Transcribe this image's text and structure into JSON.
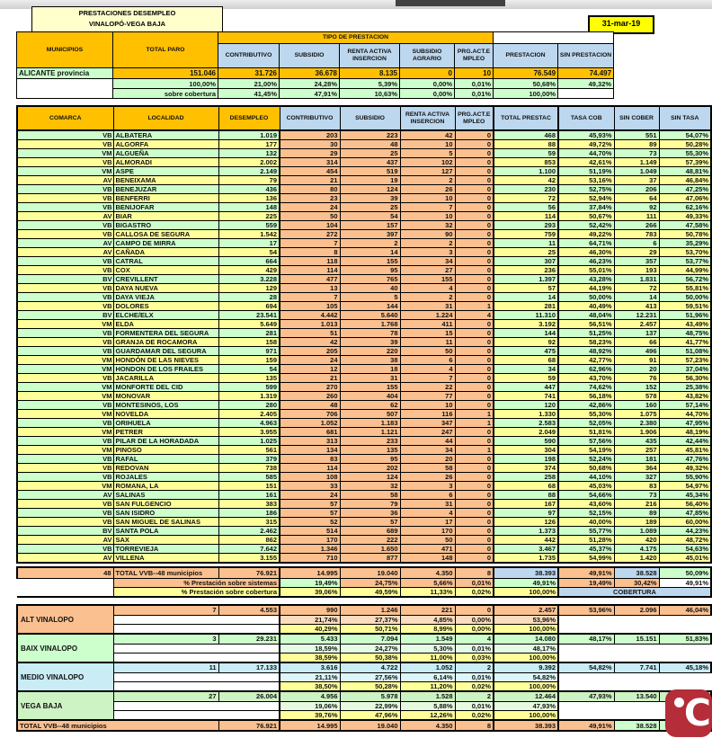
{
  "header": {
    "title_line1": "PRESTACIONES DESEMPLEO",
    "title_line2": "VINALOPÓ-VEGA BAJA",
    "date": "31-mar-19"
  },
  "colors": {
    "header_gold": "#ffc000",
    "header_blue": "#bdd7ee",
    "row_green": "#ccffcc",
    "row_yellow": "#ffff99",
    "cell_peach": "#fbc08f",
    "date_yellow": "#ffff00",
    "title_cream": "#ffffcc",
    "medio_cyan": "#c9ecf5",
    "logo_red": "#b52d38"
  },
  "summary_table": {
    "headers": {
      "municipios": "MUNICIPIOS",
      "total_paro": "TOTAL PARO",
      "tipo": "TIPO DE PRESTACION",
      "contributivo": "CONTRIBUTIVO",
      "subsidio": "SUBSIDIO",
      "renta": "RENTA ACTIVA INSERCION",
      "agrario": "SUBSIDIO AGRARIO",
      "prg": "PRG.ACT.EMPLEO",
      "prestacion": "PRESTACION",
      "sin_prestacion": "SIN PRESTACION"
    },
    "rows": [
      {
        "label": "ALICANTE provincia",
        "values": [
          "151.046",
          "31.726",
          "36.678",
          "8.135",
          "0",
          "10",
          "76.549",
          "74.497"
        ]
      },
      {
        "label": "",
        "values": [
          "100,00%",
          "21,00%",
          "24,28%",
          "5,39%",
          "0,00%",
          "0,01%",
          "50,68%",
          "49,32%"
        ]
      },
      {
        "label": "",
        "values": [
          "sobre cobertura",
          "41,45%",
          "47,91%",
          "10,63%",
          "0,00%",
          "0,01%",
          "100,00%",
          ""
        ]
      }
    ]
  },
  "main_table": {
    "headers": [
      "COMARCA",
      "LOCALIDAD",
      "DESEMPLEO",
      "CONTRIBUTIVO",
      "SUBSIDIO",
      "RENTA ACTIVA INSERCION",
      "PRG.ACT.EMPLEO",
      "TOTAL PRESTAC",
      "TASA COB",
      "SIN COBER",
      "SIN TASA"
    ],
    "rows": [
      [
        "VB",
        "ALBATERA",
        "1.019",
        "203",
        "223",
        "42",
        "0",
        "468",
        "45,93%",
        "551",
        "54,07%"
      ],
      [
        "VB",
        "ALGORFA",
        "177",
        "30",
        "48",
        "10",
        "0",
        "88",
        "49,72%",
        "89",
        "50,28%"
      ],
      [
        "VM",
        "ALGUEÑA",
        "132",
        "29",
        "25",
        "5",
        "0",
        "59",
        "44,70%",
        "73",
        "55,30%"
      ],
      [
        "VB",
        "ALMORADI",
        "2.002",
        "314",
        "437",
        "102",
        "0",
        "853",
        "42,61%",
        "1.149",
        "57,39%"
      ],
      [
        "VM",
        "ASPE",
        "2.149",
        "454",
        "519",
        "127",
        "0",
        "1.100",
        "51,19%",
        "1.049",
        "48,81%"
      ],
      [
        "AV",
        "BENEIXAMA",
        "79",
        "21",
        "19",
        "2",
        "0",
        "42",
        "53,16%",
        "37",
        "46,84%"
      ],
      [
        "VB",
        "BENEJUZAR",
        "436",
        "80",
        "124",
        "26",
        "0",
        "230",
        "52,75%",
        "206",
        "47,25%"
      ],
      [
        "VB",
        "BENFERRI",
        "136",
        "23",
        "39",
        "10",
        "0",
        "72",
        "52,94%",
        "64",
        "47,06%"
      ],
      [
        "VB",
        "BENIJOFAR",
        "148",
        "24",
        "25",
        "7",
        "0",
        "56",
        "37,84%",
        "92",
        "62,16%"
      ],
      [
        "AV",
        "BIAR",
        "225",
        "50",
        "54",
        "10",
        "0",
        "114",
        "50,67%",
        "111",
        "49,33%"
      ],
      [
        "VB",
        "BIGASTRO",
        "559",
        "104",
        "157",
        "32",
        "0",
        "293",
        "52,42%",
        "266",
        "47,58%"
      ],
      [
        "VB",
        "CALLOSA DE SEGURA",
        "1.542",
        "272",
        "397",
        "90",
        "0",
        "759",
        "49,22%",
        "783",
        "50,78%"
      ],
      [
        "AV",
        "CAMPO DE MIRRA",
        "17",
        "7",
        "2",
        "2",
        "0",
        "11",
        "64,71%",
        "6",
        "35,29%"
      ],
      [
        "AV",
        "CAÑADA",
        "54",
        "8",
        "14",
        "3",
        "0",
        "25",
        "46,30%",
        "29",
        "53,70%"
      ],
      [
        "VB",
        "CATRAL",
        "664",
        "118",
        "155",
        "34",
        "0",
        "307",
        "46,23%",
        "357",
        "53,77%"
      ],
      [
        "VB",
        "COX",
        "429",
        "114",
        "95",
        "27",
        "0",
        "236",
        "55,01%",
        "193",
        "44,99%"
      ],
      [
        "BV",
        "CREVILLENT",
        "3.228",
        "477",
        "765",
        "155",
        "0",
        "1.397",
        "43,28%",
        "1.831",
        "56,72%"
      ],
      [
        "VB",
        "DAYA NUEVA",
        "129",
        "13",
        "40",
        "4",
        "0",
        "57",
        "44,19%",
        "72",
        "55,81%"
      ],
      [
        "VB",
        "DAYA VIEJA",
        "28",
        "7",
        "5",
        "2",
        "0",
        "14",
        "50,00%",
        "14",
        "50,00%"
      ],
      [
        "VB",
        "DOLORES",
        "694",
        "105",
        "144",
        "31",
        "1",
        "281",
        "40,49%",
        "413",
        "59,51%"
      ],
      [
        "BV",
        "ELCHE/ELX",
        "23.541",
        "4.442",
        "5.640",
        "1.224",
        "4",
        "11.310",
        "48,04%",
        "12.231",
        "51,96%"
      ],
      [
        "VM",
        "ELDA",
        "5.649",
        "1.013",
        "1.768",
        "411",
        "0",
        "3.192",
        "56,51%",
        "2.457",
        "43,49%"
      ],
      [
        "VB",
        "FORMENTERA DEL SEGURA",
        "281",
        "51",
        "78",
        "15",
        "0",
        "144",
        "51,25%",
        "137",
        "48,75%"
      ],
      [
        "VB",
        "GRANJA DE ROCAMORA",
        "158",
        "42",
        "39",
        "11",
        "0",
        "92",
        "58,23%",
        "66",
        "41,77%"
      ],
      [
        "VB",
        "GUARDAMAR DEL SEGURA",
        "971",
        "205",
        "220",
        "50",
        "0",
        "475",
        "48,92%",
        "496",
        "51,08%"
      ],
      [
        "VM",
        "HONDÓN DE LAS NIEVES",
        "159",
        "24",
        "38",
        "6",
        "0",
        "68",
        "42,77%",
        "91",
        "57,23%"
      ],
      [
        "VM",
        "HONDON DE LOS FRAILES",
        "54",
        "12",
        "18",
        "4",
        "0",
        "34",
        "62,96%",
        "20",
        "37,04%"
      ],
      [
        "VB",
        "JACARILLA",
        "135",
        "21",
        "31",
        "7",
        "0",
        "59",
        "43,70%",
        "76",
        "56,30%"
      ],
      [
        "VM",
        "MONFORTE DEL CID",
        "599",
        "270",
        "155",
        "22",
        "0",
        "447",
        "74,62%",
        "152",
        "25,38%"
      ],
      [
        "VM",
        "MONOVAR",
        "1.319",
        "260",
        "404",
        "77",
        "0",
        "741",
        "56,18%",
        "578",
        "43,82%"
      ],
      [
        "VB",
        "MONTESINOS, LOS",
        "280",
        "48",
        "62",
        "10",
        "0",
        "120",
        "42,86%",
        "160",
        "57,14%"
      ],
      [
        "VM",
        "NOVELDA",
        "2.405",
        "706",
        "507",
        "116",
        "1",
        "1.330",
        "55,30%",
        "1.075",
        "44,70%"
      ],
      [
        "VB",
        "ORIHUELA",
        "4.963",
        "1.052",
        "1.183",
        "347",
        "1",
        "2.583",
        "52,05%",
        "2.380",
        "47,95%"
      ],
      [
        "VM",
        "PETRER",
        "3.955",
        "681",
        "1.121",
        "247",
        "0",
        "2.049",
        "51,81%",
        "1.906",
        "48,19%"
      ],
      [
        "VB",
        "PILAR DE LA HORADADA",
        "1.025",
        "313",
        "233",
        "44",
        "0",
        "590",
        "57,56%",
        "435",
        "42,44%"
      ],
      [
        "VM",
        "PINOSO",
        "561",
        "134",
        "135",
        "34",
        "1",
        "304",
        "54,19%",
        "257",
        "45,81%"
      ],
      [
        "VB",
        "RAFAL",
        "379",
        "83",
        "95",
        "20",
        "0",
        "198",
        "52,24%",
        "181",
        "47,76%"
      ],
      [
        "VB",
        "REDOVAN",
        "738",
        "114",
        "202",
        "58",
        "0",
        "374",
        "50,68%",
        "364",
        "49,32%"
      ],
      [
        "VB",
        "ROJALES",
        "585",
        "108",
        "124",
        "26",
        "0",
        "258",
        "44,10%",
        "327",
        "55,90%"
      ],
      [
        "VM",
        "ROMANA, LA",
        "151",
        "33",
        "32",
        "3",
        "0",
        "68",
        "45,03%",
        "83",
        "54,97%"
      ],
      [
        "AV",
        "SALINAS",
        "161",
        "24",
        "58",
        "6",
        "0",
        "88",
        "54,66%",
        "73",
        "45,34%"
      ],
      [
        "VB",
        "SAN FULGENCIO",
        "383",
        "57",
        "79",
        "31",
        "0",
        "167",
        "43,60%",
        "216",
        "56,40%"
      ],
      [
        "VB",
        "SAN ISIDRO",
        "186",
        "57",
        "36",
        "4",
        "0",
        "97",
        "52,15%",
        "89",
        "47,85%"
      ],
      [
        "VB",
        "SAN MIGUEL DE SALINAS",
        "315",
        "52",
        "57",
        "17",
        "0",
        "126",
        "40,00%",
        "189",
        "60,00%"
      ],
      [
        "BV",
        "SANTA POLA",
        "2.462",
        "514",
        "689",
        "170",
        "0",
        "1.373",
        "55,77%",
        "1.089",
        "44,23%"
      ],
      [
        "AV",
        "SAX",
        "862",
        "170",
        "222",
        "50",
        "0",
        "442",
        "51,28%",
        "420",
        "48,72%"
      ],
      [
        "VB",
        "TORREVIEJA",
        "7.642",
        "1.346",
        "1.650",
        "471",
        "0",
        "3.467",
        "45,37%",
        "4.175",
        "54,63%"
      ],
      [
        "AV",
        "VILLENA",
        "3.155",
        "710",
        "877",
        "148",
        "0",
        "1.735",
        "54,99%",
        "1.420",
        "45,01%"
      ]
    ]
  },
  "totals": {
    "row1": [
      "48",
      "TOTAL VVB--48 municipios",
      "76.921",
      "14.995",
      "19.040",
      "4.350",
      "8",
      "38.393",
      "49,91%",
      "38.528",
      "50,09%"
    ],
    "row2_label": "% Prestación sobre sistemas",
    "row2": [
      "19,49%",
      "24,75%",
      "5,66%",
      "0,01%",
      "49,91%",
      "19,49%",
      "30,42%",
      "49,91%"
    ],
    "row3_label": "% Prestación sobre cobertura",
    "row3": [
      "39,06%",
      "49,59%",
      "11,33%",
      "0,02%",
      "100,00%"
    ],
    "cobertura_label": "COBERTURA"
  },
  "comarca_summary": {
    "blocks": [
      {
        "name": "ALT VINALOPO",
        "row1": [
          "7",
          "4.553",
          "990",
          "1.246",
          "221",
          "0",
          "2.457",
          "53,96%",
          "2.096",
          "46,04%"
        ],
        "row2": [
          "21,74%",
          "27,37%",
          "4,85%",
          "0,00%",
          "53,96%"
        ],
        "row3": [
          "40,29%",
          "50,71%",
          "8,99%",
          "0,00%",
          "100,00%"
        ]
      },
      {
        "name": "BAIX VINALOPO",
        "row1": [
          "3",
          "29.231",
          "5.433",
          "7.094",
          "1.549",
          "4",
          "14.080",
          "48,17%",
          "15.151",
          "51,83%"
        ],
        "row2": [
          "18,59%",
          "24,27%",
          "5,30%",
          "0,01%",
          "48,17%"
        ],
        "row3": [
          "38,59%",
          "50,38%",
          "11,00%",
          "0,03%",
          "100,00%"
        ]
      },
      {
        "name": "MEDIO VINALOPO",
        "row1": [
          "11",
          "17.133",
          "3.616",
          "4.722",
          "1.052",
          "2",
          "9.392",
          "54,82%",
          "7.741",
          "45,18%"
        ],
        "row2": [
          "21,11%",
          "27,56%",
          "6,14%",
          "0,01%",
          "54,82%"
        ],
        "row3": [
          "38,50%",
          "50,28%",
          "11,20%",
          "0,02%",
          "100,00%"
        ]
      },
      {
        "name": "VEGA BAJA",
        "row1": [
          "27",
          "26.004",
          "4.956",
          "5.978",
          "1.528",
          "2",
          "12.464",
          "47,93%",
          "13.540",
          "52,07%"
        ],
        "row2": [
          "19,06%",
          "22,99%",
          "5,88%",
          "0,01%",
          "47,93%"
        ],
        "row3": [
          "39,76%",
          "47,96%",
          "12,26%",
          "0,02%",
          "100,00%"
        ]
      }
    ],
    "grand_total": [
      "TOTAL VVB--48 municipios",
      "76.921",
      "14.995",
      "19.040",
      "4.350",
      "8",
      "38.393",
      "49,91%",
      "38.528",
      ""
    ]
  },
  "watermark": {
    "letter": "C"
  }
}
